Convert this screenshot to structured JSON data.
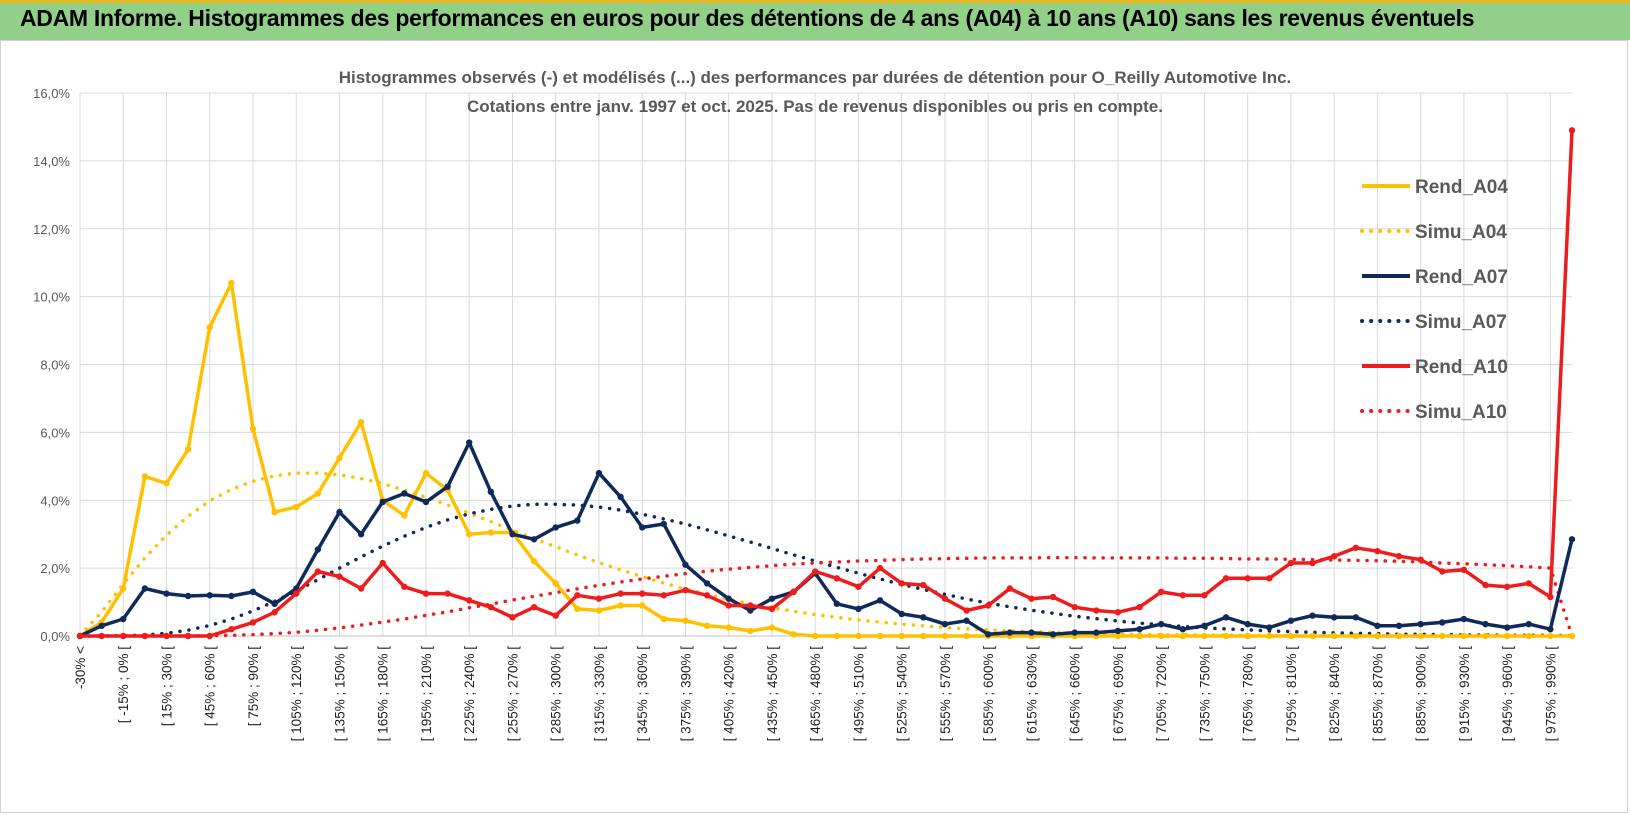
{
  "header": {
    "title": "ADAM Informe. Histogrammes des performances en euros pour des détentions de 4 ans (A04) à 10 ans (A10) sans les revenus éventuels"
  },
  "chart_data": {
    "type": "line",
    "title": "Histogrammes observés (-) et modélisés (...) des performances par durées de détention pour O_Reilly Automotive Inc.",
    "subtitle": "Cotations entre janv. 1997 et oct. 2025. Pas de revenus disponibles ou pris en compte.",
    "ylim": [
      0,
      16
    ],
    "yticks": [
      "0,0%",
      "2,0%",
      "4,0%",
      "6,0%",
      "8,0%",
      "10,0%",
      "12,0%",
      "14,0%",
      "16,0%"
    ],
    "xtick_labels": [
      "-30% <",
      "[ -15% ; 0% [",
      "[ 15% ; 30% [",
      "[ 45% ; 60% [",
      "[ 75% ; 90% [",
      "[ 105% ; 120% [",
      "[ 135% ; 150% [",
      "[ 165% ; 180% [",
      "[ 195% ; 210% [",
      "[ 225% ; 240% [",
      "[ 255% ; 270% [",
      "[ 285% ; 300% [",
      "[ 315% ; 330% [",
      "[ 345% ; 360% [",
      "[ 375% ; 390% [",
      "[ 405% ; 420% [",
      "[ 435% ; 450% [",
      "[ 465% ; 480% [",
      "[ 495% ; 510% [",
      "[ 525% ; 540% [",
      "[ 555% ; 570% [",
      "[ 585% ; 600% [",
      "[ 615% ; 630% [",
      "[ 645% ; 660% [",
      "[ 675% ; 690% [",
      "[ 705% ; 720% [",
      "[ 735% ; 750% [",
      "[ 765% ; 780% [",
      "[ 795% ; 810% [",
      "[ 825% ; 840% [",
      "[ 855% ; 870% [",
      "[ 885% ; 900% [",
      "[ 915% ; 930% [",
      "[ 945% ; 960% [",
      "[ 975% ; 990% ["
    ],
    "n_points": 70,
    "series": [
      {
        "name": "Rend_A04",
        "style": "solid",
        "color": "#ffc000",
        "values": [
          0.0,
          0.4,
          1.4,
          4.7,
          4.5,
          5.5,
          9.1,
          10.4,
          6.1,
          3.65,
          3.8,
          4.2,
          5.25,
          6.3,
          4.0,
          3.55,
          4.8,
          4.3,
          3.0,
          3.05,
          3.05,
          2.2,
          1.55,
          0.8,
          0.75,
          0.9,
          0.9,
          0.5,
          0.45,
          0.3,
          0.25,
          0.15,
          0.25,
          0.05,
          0.0,
          0.0,
          0.0,
          0.0,
          0.0,
          0.0,
          0.0,
          0.0,
          0.0,
          0.0,
          0.0,
          0.0,
          0.0,
          0.0,
          0.0,
          0.0,
          0.0,
          0.0,
          0.0,
          0.0,
          0.0,
          0.0,
          0.0,
          0.0,
          0.0,
          0.0,
          0.0,
          0.0,
          0.0,
          0.0,
          0.0,
          0.0,
          0.0,
          0.0,
          0.0,
          0.0
        ]
      },
      {
        "name": "Simu_A04",
        "style": "dotted",
        "color": "#ffc000",
        "values": [
          0.0,
          0.71,
          1.53,
          2.3,
          2.97,
          3.53,
          3.98,
          4.32,
          4.56,
          4.72,
          4.8,
          4.8,
          4.75,
          4.64,
          4.49,
          4.3,
          4.09,
          3.86,
          3.62,
          3.37,
          3.12,
          2.87,
          2.63,
          2.39,
          2.16,
          1.95,
          1.75,
          1.56,
          1.39,
          1.23,
          1.08,
          0.95,
          0.83,
          0.73,
          0.63,
          0.55,
          0.47,
          0.41,
          0.35,
          0.3,
          0.25,
          0.21,
          0.18,
          0.15,
          0.13,
          0.11,
          0.09,
          0.08,
          0.06,
          0.05,
          0.04,
          0.04,
          0.03,
          0.03,
          0.02,
          0.02,
          0.01,
          0.01,
          0.01,
          0.01,
          0.01,
          0.0,
          0.0,
          0.0,
          0.0,
          0.0,
          0.0,
          0.0,
          0.0,
          0.0
        ]
      },
      {
        "name": "Rend_A07",
        "style": "solid",
        "color": "#0f2a5a",
        "values": [
          0.0,
          0.3,
          0.5,
          1.4,
          1.25,
          1.18,
          1.2,
          1.18,
          1.3,
          0.95,
          1.4,
          2.55,
          3.65,
          3.0,
          3.95,
          4.2,
          3.95,
          4.4,
          5.7,
          4.25,
          3.0,
          2.85,
          3.2,
          3.4,
          4.8,
          4.1,
          3.2,
          3.3,
          2.1,
          1.55,
          1.1,
          0.75,
          1.1,
          1.3,
          1.85,
          0.95,
          0.8,
          1.05,
          0.65,
          0.55,
          0.35,
          0.45,
          0.05,
          0.1,
          0.1,
          0.05,
          0.1,
          0.1,
          0.15,
          0.2,
          0.35,
          0.2,
          0.3,
          0.55,
          0.35,
          0.25,
          0.45,
          0.6,
          0.55,
          0.55,
          0.3,
          0.3,
          0.35,
          0.4,
          0.5,
          0.35,
          0.25,
          0.35,
          0.2,
          2.85
        ]
      },
      {
        "name": "Simu_A07",
        "style": "dotted",
        "color": "#0f2a5a",
        "values": [
          0.0,
          0.0,
          0.01,
          0.03,
          0.08,
          0.17,
          0.31,
          0.5,
          0.74,
          1.02,
          1.33,
          1.66,
          2.0,
          2.33,
          2.65,
          2.94,
          3.2,
          3.42,
          3.6,
          3.73,
          3.83,
          3.88,
          3.88,
          3.86,
          3.8,
          3.71,
          3.59,
          3.45,
          3.3,
          3.13,
          2.95,
          2.77,
          2.58,
          2.39,
          2.21,
          2.02,
          1.85,
          1.68,
          1.52,
          1.37,
          1.23,
          1.09,
          0.97,
          0.86,
          0.76,
          0.67,
          0.58,
          0.51,
          0.44,
          0.38,
          0.33,
          0.28,
          0.24,
          0.21,
          0.18,
          0.15,
          0.13,
          0.11,
          0.09,
          0.08,
          0.07,
          0.05,
          0.05,
          0.04,
          0.03,
          0.03,
          0.02,
          0.02,
          0.02,
          0.01
        ]
      },
      {
        "name": "Rend_A10",
        "style": "solid",
        "color": "#ee1c1c",
        "values": [
          0.0,
          0.0,
          0.0,
          0.0,
          0.0,
          0.0,
          0.0,
          0.2,
          0.4,
          0.7,
          1.25,
          1.9,
          1.75,
          1.4,
          2.15,
          1.45,
          1.25,
          1.25,
          1.05,
          0.85,
          0.55,
          0.85,
          0.6,
          1.2,
          1.1,
          1.25,
          1.25,
          1.2,
          1.35,
          1.2,
          0.9,
          0.9,
          0.8,
          1.3,
          1.9,
          1.7,
          1.45,
          2.0,
          1.55,
          1.5,
          1.1,
          0.75,
          0.9,
          1.4,
          1.1,
          1.15,
          0.85,
          0.75,
          0.7,
          0.85,
          1.3,
          1.2,
          1.2,
          1.7,
          1.7,
          1.7,
          2.15,
          2.15,
          2.35,
          2.6,
          2.5,
          2.35,
          2.25,
          1.9,
          1.95,
          1.5,
          1.45,
          1.55,
          1.15,
          14.9
        ]
      },
      {
        "name": "Simu_A10",
        "style": "dotted",
        "color": "#ee1c1c",
        "values": [
          0.0,
          0.0,
          0.0,
          0.0,
          0.0,
          0.0,
          0.01,
          0.02,
          0.04,
          0.07,
          0.11,
          0.17,
          0.24,
          0.32,
          0.41,
          0.5,
          0.61,
          0.71,
          0.83,
          0.94,
          1.06,
          1.17,
          1.28,
          1.39,
          1.49,
          1.59,
          1.68,
          1.76,
          1.84,
          1.91,
          1.97,
          2.02,
          2.07,
          2.12,
          2.15,
          2.18,
          2.21,
          2.23,
          2.25,
          2.27,
          2.28,
          2.29,
          2.3,
          2.3,
          2.3,
          2.31,
          2.31,
          2.3,
          2.3,
          2.3,
          2.3,
          2.29,
          2.29,
          2.28,
          2.27,
          2.27,
          2.26,
          2.25,
          2.24,
          2.23,
          2.22,
          2.2,
          2.18,
          2.15,
          2.13,
          2.1,
          2.07,
          2.04,
          2.0,
          0.0
        ]
      }
    ]
  }
}
